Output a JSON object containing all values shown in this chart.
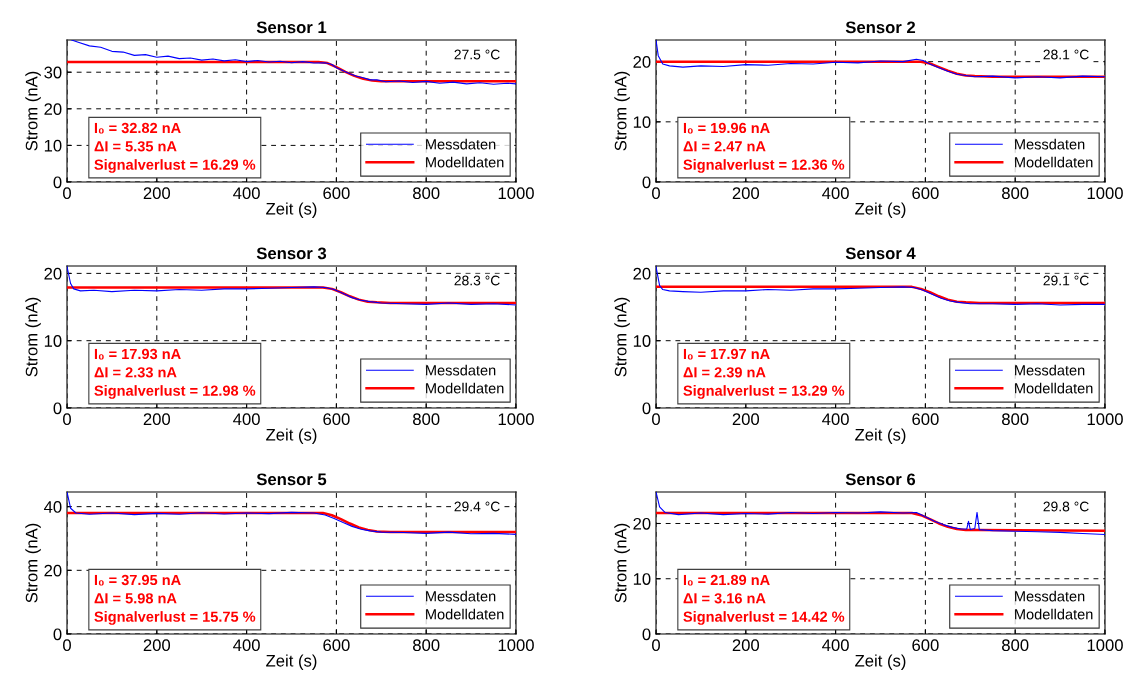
{
  "chart_data": [
    {
      "type": "line",
      "title": "Sensor 1",
      "xlabel": "Zeit (s)",
      "ylabel": "Strom (nA)",
      "xlim": [
        0,
        1000
      ],
      "ylim": [
        0,
        38.8
      ],
      "xticks": [
        0,
        200,
        400,
        600,
        800,
        1000
      ],
      "yticks": [
        0,
        10,
        20,
        30
      ],
      "grid": true,
      "legend": "bottom right",
      "annotations": [
        "27.5 °C",
        "I₀ = 32.82 nA",
        "ΔI = 5.35 nA",
        "Signalverlust = 16.29 %"
      ],
      "series": [
        {
          "name": "Messdaten",
          "color": "#0000ff",
          "x": [
            10,
            25,
            50,
            75,
            100,
            125,
            150,
            175,
            200,
            225,
            250,
            275,
            300,
            325,
            350,
            375,
            400,
            425,
            450,
            475,
            500,
            525,
            550,
            575,
            590,
            600,
            615,
            630,
            645,
            660,
            675,
            690,
            710,
            740,
            770,
            800,
            830,
            860,
            890,
            920,
            950,
            980,
            1000
          ],
          "values": [
            38.8,
            38.2,
            37.2,
            36.8,
            35.7,
            35.5,
            34.6,
            34.8,
            34.1,
            34.4,
            33.7,
            33.9,
            33.3,
            33.6,
            33.1,
            33.4,
            32.9,
            33.2,
            32.8,
            33.0,
            32.6,
            32.9,
            32.5,
            32.6,
            32.1,
            31.2,
            30.4,
            29.6,
            28.9,
            28.5,
            27.9,
            27.9,
            27.4,
            27.6,
            27.2,
            27.5,
            27.0,
            27.3,
            26.8,
            27.1,
            26.7,
            27.0,
            26.8
          ]
        },
        {
          "name": "Modelldaten",
          "color": "#ff0000",
          "x": [
            0,
            560,
            580,
            600,
            620,
            640,
            660,
            680,
            700,
            740,
            1000
          ],
          "values": [
            32.8,
            32.8,
            32.5,
            31.4,
            30.1,
            29.0,
            28.2,
            27.7,
            27.5,
            27.5,
            27.5
          ]
        }
      ]
    },
    {
      "type": "line",
      "title": "Sensor 2",
      "xlabel": "Zeit (s)",
      "ylabel": "Strom (nA)",
      "xlim": [
        0,
        1000
      ],
      "ylim": [
        0,
        23.6
      ],
      "xticks": [
        0,
        200,
        400,
        600,
        800,
        1000
      ],
      "yticks": [
        0,
        10,
        20
      ],
      "grid": true,
      "legend": "bottom right",
      "annotations": [
        "28.1 °C",
        "I₀ = 19.96 nA",
        "ΔI = 2.47 nA",
        "Signalverlust = 12.36 %"
      ],
      "series": [
        {
          "name": "Messdaten",
          "color": "#0000ff",
          "x": [
            0,
            5,
            15,
            30,
            60,
            100,
            150,
            200,
            250,
            300,
            350,
            400,
            450,
            500,
            550,
            580,
            595,
            610,
            630,
            650,
            670,
            690,
            710,
            750,
            800,
            850,
            900,
            950,
            1000
          ],
          "values": [
            23.6,
            21.0,
            19.6,
            19.3,
            19.1,
            19.3,
            19.2,
            19.5,
            19.4,
            19.7,
            19.6,
            19.9,
            19.8,
            20.1,
            20.0,
            20.4,
            20.2,
            19.6,
            19.0,
            18.4,
            17.9,
            17.7,
            17.5,
            17.6,
            17.3,
            17.5,
            17.3,
            17.6,
            17.5
          ]
        },
        {
          "name": "Modelldaten",
          "color": "#ff0000",
          "x": [
            0,
            590,
            610,
            630,
            650,
            670,
            690,
            710,
            750,
            1000
          ],
          "values": [
            20.0,
            20.0,
            19.7,
            19.1,
            18.5,
            18.0,
            17.7,
            17.6,
            17.5,
            17.5
          ]
        }
      ]
    },
    {
      "type": "line",
      "title": "Sensor 3",
      "xlabel": "Zeit (s)",
      "ylabel": "Strom (nA)",
      "xlim": [
        0,
        1000
      ],
      "ylim": [
        0,
        21.1
      ],
      "xticks": [
        0,
        200,
        400,
        600,
        800,
        1000
      ],
      "yticks": [
        0,
        10,
        20
      ],
      "grid": true,
      "legend": "bottom right",
      "annotations": [
        "28.3 °C",
        "I₀ = 17.93 nA",
        "ΔI = 2.33 nA",
        "Signalverlust = 12.98 %"
      ],
      "series": [
        {
          "name": "Messdaten",
          "color": "#0000ff",
          "x": [
            0,
            8,
            15,
            30,
            60,
            100,
            150,
            200,
            250,
            300,
            350,
            400,
            450,
            500,
            550,
            575,
            595,
            615,
            635,
            655,
            675,
            700,
            750,
            800,
            850,
            900,
            950,
            1000
          ],
          "values": [
            21.0,
            18.5,
            17.7,
            17.4,
            17.5,
            17.3,
            17.5,
            17.4,
            17.6,
            17.5,
            17.7,
            17.7,
            17.8,
            17.9,
            18.0,
            17.9,
            17.6,
            17.0,
            16.4,
            16.0,
            15.8,
            15.6,
            15.5,
            15.4,
            15.6,
            15.4,
            15.5,
            15.3
          ]
        },
        {
          "name": "Modelldaten",
          "color": "#ff0000",
          "x": [
            0,
            570,
            590,
            610,
            630,
            650,
            670,
            690,
            720,
            1000
          ],
          "values": [
            17.9,
            17.9,
            17.7,
            17.2,
            16.6,
            16.1,
            15.8,
            15.7,
            15.6,
            15.6
          ]
        }
      ]
    },
    {
      "type": "line",
      "title": "Sensor 4",
      "xlabel": "Zeit (s)",
      "ylabel": "Strom (nA)",
      "xlim": [
        0,
        1000
      ],
      "ylim": [
        0,
        21.1
      ],
      "xticks": [
        0,
        200,
        400,
        600,
        800,
        1000
      ],
      "yticks": [
        0,
        10,
        20
      ],
      "grid": true,
      "legend": "bottom right",
      "annotations": [
        "29.1 °C",
        "I₀ = 17.97 nA",
        "ΔI = 2.39 nA",
        "Signalverlust = 13.29 %"
      ],
      "series": [
        {
          "name": "Messdaten",
          "color": "#0000ff",
          "x": [
            0,
            8,
            15,
            30,
            60,
            100,
            150,
            200,
            250,
            300,
            350,
            400,
            450,
            500,
            550,
            575,
            595,
            615,
            635,
            655,
            675,
            700,
            750,
            800,
            850,
            900,
            950,
            1000
          ],
          "values": [
            21.0,
            18.2,
            17.6,
            17.4,
            17.3,
            17.2,
            17.4,
            17.4,
            17.6,
            17.5,
            17.7,
            17.7,
            17.8,
            17.9,
            18.0,
            17.9,
            17.5,
            16.9,
            16.3,
            15.9,
            15.7,
            15.5,
            15.5,
            15.4,
            15.5,
            15.3,
            15.4,
            15.4
          ]
        },
        {
          "name": "Modelldaten",
          "color": "#ff0000",
          "x": [
            0,
            570,
            590,
            610,
            630,
            650,
            670,
            690,
            720,
            1000
          ],
          "values": [
            18.0,
            18.0,
            17.7,
            17.2,
            16.6,
            16.1,
            15.8,
            15.7,
            15.6,
            15.6
          ]
        }
      ]
    },
    {
      "type": "line",
      "title": "Sensor 5",
      "xlabel": "Zeit (s)",
      "ylabel": "Strom (nA)",
      "xlim": [
        0,
        1000
      ],
      "ylim": [
        0,
        44.6
      ],
      "xticks": [
        0,
        200,
        400,
        600,
        800,
        1000
      ],
      "yticks": [
        0,
        20,
        40
      ],
      "grid": true,
      "legend": "bottom right",
      "annotations": [
        "29.4 °C",
        "I₀ = 37.95 nA",
        "ΔI = 5.98 nA",
        "Signalverlust = 15.75 %"
      ],
      "series": [
        {
          "name": "Messdaten",
          "color": "#0000ff",
          "x": [
            0,
            8,
            20,
            50,
            100,
            150,
            200,
            250,
            300,
            350,
            400,
            450,
            500,
            550,
            575,
            595,
            615,
            635,
            655,
            675,
            700,
            750,
            800,
            850,
            900,
            950,
            1000
          ],
          "values": [
            44.6,
            39.5,
            38.0,
            37.6,
            38.0,
            37.5,
            37.9,
            37.6,
            38.1,
            37.7,
            38.0,
            37.8,
            38.2,
            38.0,
            37.4,
            36.3,
            35.0,
            33.8,
            32.9,
            32.4,
            32.0,
            31.9,
            31.6,
            32.0,
            31.5,
            31.6,
            31.3
          ]
        },
        {
          "name": "Modelldaten",
          "color": "#ff0000",
          "x": [
            0,
            570,
            590,
            610,
            630,
            650,
            670,
            690,
            720,
            1000
          ],
          "values": [
            38.0,
            38.0,
            37.3,
            36.1,
            34.7,
            33.5,
            32.7,
            32.2,
            32.0,
            32.0
          ]
        }
      ]
    },
    {
      "type": "line",
      "title": "Sensor 6",
      "xlabel": "Zeit (s)",
      "ylabel": "Strom (nA)",
      "xlim": [
        0,
        1000
      ],
      "ylim": [
        0,
        25.7
      ],
      "xticks": [
        0,
        200,
        400,
        600,
        800,
        1000
      ],
      "yticks": [
        0,
        10,
        20
      ],
      "grid": true,
      "legend": "bottom right",
      "annotations": [
        "29.8 °C",
        "I₀ = 21.89 nA",
        "ΔI = 3.16 nA",
        "Signalverlust = 14.42 %"
      ],
      "series": [
        {
          "name": "Messdaten",
          "color": "#0000ff",
          "x": [
            0,
            8,
            20,
            50,
            100,
            150,
            200,
            250,
            300,
            350,
            400,
            450,
            500,
            550,
            580,
            600,
            620,
            640,
            660,
            680,
            692,
            696,
            700,
            710,
            715,
            720,
            750,
            800,
            850,
            900,
            950,
            1000
          ],
          "values": [
            25.7,
            23.0,
            22.0,
            21.6,
            21.9,
            21.6,
            21.8,
            21.7,
            22.0,
            21.8,
            22.0,
            21.9,
            22.1,
            21.9,
            22.0,
            21.2,
            20.4,
            19.8,
            19.3,
            19.0,
            19.0,
            20.4,
            18.9,
            19.1,
            22.0,
            18.9,
            18.7,
            18.6,
            18.5,
            18.4,
            18.2,
            18.0
          ]
        },
        {
          "name": "Modelldaten",
          "color": "#ff0000",
          "x": [
            0,
            570,
            590,
            610,
            630,
            650,
            670,
            690,
            720,
            1000
          ],
          "values": [
            21.9,
            21.9,
            21.5,
            20.8,
            20.0,
            19.4,
            19.0,
            18.8,
            18.8,
            18.7
          ]
        }
      ]
    }
  ]
}
